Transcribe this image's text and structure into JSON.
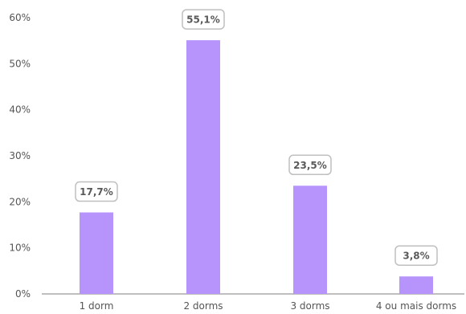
{
  "chart_data": {
    "type": "bar",
    "categories": [
      "1 dorm",
      "2 dorms",
      "3 dorms",
      "4 ou mais dorms"
    ],
    "values": [
      17.7,
      55.1,
      23.5,
      3.8
    ],
    "data_labels": [
      "17,7%",
      "55,1%",
      "23,5%",
      "3,8%"
    ],
    "y_ticks": [
      0,
      10,
      20,
      30,
      40,
      50,
      60
    ],
    "y_tick_labels": [
      "0%",
      "10%",
      "20%",
      "30%",
      "40%",
      "50%",
      "60%"
    ],
    "ylim": [
      0,
      60
    ],
    "title": "",
    "xlabel": "",
    "ylabel": "",
    "grid": false,
    "legend": "none",
    "colors": {
      "bar": "#b794fc",
      "axis": "#7f7f7f",
      "label_border": "#bfbfbf"
    }
  }
}
